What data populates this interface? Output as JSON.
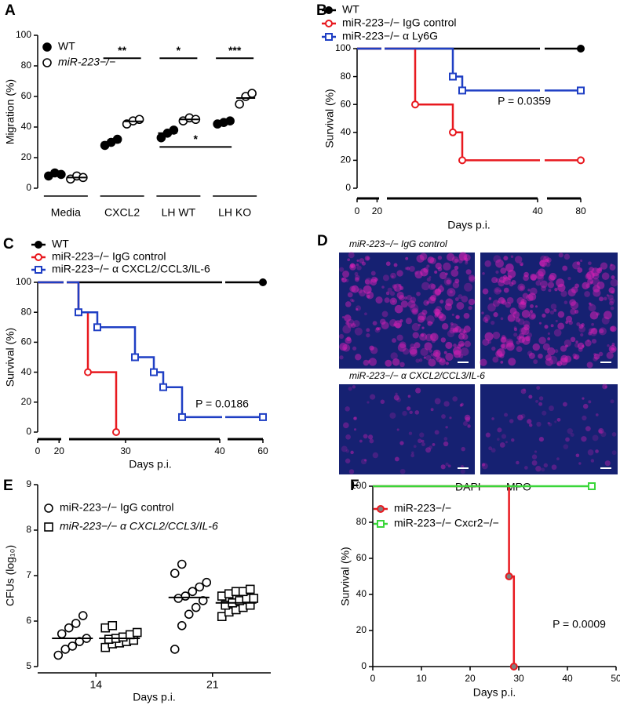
{
  "chart_data": [
    {
      "panel": "A",
      "type": "dotplot",
      "ylabel": "Migration (%)",
      "ylim": [
        0,
        100
      ],
      "yticks": [
        0,
        20,
        40,
        60,
        80,
        100
      ],
      "categories": [
        "Media",
        "CXCL2",
        "LH WT",
        "LH KO"
      ],
      "series": [
        {
          "name": "WT",
          "color": "#000000",
          "marker": "filled-circle",
          "values": [
            [
              8,
              10,
              9
            ],
            [
              28,
              30,
              32
            ],
            [
              33,
              36,
              38
            ],
            [
              42,
              43,
              44
            ]
          ],
          "means": [
            9,
            30,
            36,
            43
          ]
        },
        {
          "name": "miR-223−/−",
          "color": "#000000",
          "marker": "open-circle",
          "values": [
            [
              6,
              8,
              7
            ],
            [
              42,
              44,
              45
            ],
            [
              44,
              46,
              45
            ],
            [
              55,
              60,
              62
            ]
          ],
          "means": [
            7,
            43.7,
            45,
            59
          ]
        }
      ],
      "annotations": [
        "**",
        "*",
        "***",
        "*"
      ]
    },
    {
      "panel": "B",
      "type": "survival",
      "xlabel": "Days p.i.",
      "ylabel": "Survival (%)",
      "xsegments": [
        [
          0,
          22
        ],
        [
          24,
          40
        ],
        [
          77,
          80
        ]
      ],
      "xticks": [
        0,
        20,
        40,
        80
      ],
      "ylim": [
        0,
        100
      ],
      "yticks": [
        0,
        20,
        40,
        60,
        80,
        100
      ],
      "series": [
        {
          "name": "WT",
          "color": "#000000",
          "marker": "filled-circle",
          "x": [
            0,
            80
          ],
          "values": [
            100,
            100
          ]
        },
        {
          "name": "miR-223−/− IgG control",
          "color": "#e8191f",
          "marker": "open-circle",
          "x": [
            0,
            27,
            31,
            32,
            80
          ],
          "values": [
            100,
            60,
            40,
            20,
            20
          ]
        },
        {
          "name": "miR-223−/− α Ly6G",
          "color": "#1f3fc4",
          "marker": "open-square",
          "x": [
            0,
            31,
            32,
            80
          ],
          "values": [
            100,
            80,
            70,
            70
          ]
        }
      ],
      "annotations": [
        "P = 0.0359"
      ]
    },
    {
      "panel": "C",
      "type": "survival",
      "xlabel": "Days p.i.",
      "ylabel": "Survival (%)",
      "xsegments": [
        [
          0,
          22
        ],
        [
          24,
          40
        ],
        [
          58,
          60
        ]
      ],
      "xticks": [
        0,
        20,
        30,
        40,
        60
      ],
      "ylim": [
        0,
        100
      ],
      "yticks": [
        0,
        20,
        40,
        60,
        80,
        100
      ],
      "series": [
        {
          "name": "WT",
          "color": "#000000",
          "marker": "filled-circle",
          "x": [
            0,
            60
          ],
          "values": [
            100,
            100
          ]
        },
        {
          "name": "miR-223−/− IgG control",
          "color": "#e8191f",
          "marker": "open-circle",
          "x": [
            0,
            25,
            26,
            29
          ],
          "values": [
            100,
            80,
            40,
            0
          ]
        },
        {
          "name": "miR-223−/− α CXCL2/CCL3/IL-6",
          "color": "#1f3fc4",
          "marker": "open-square",
          "x": [
            0,
            25,
            27,
            31,
            33,
            34,
            36,
            60
          ],
          "values": [
            100,
            80,
            70,
            50,
            40,
            30,
            10,
            10
          ]
        }
      ],
      "annotations": [
        "P = 0.0186"
      ]
    },
    {
      "panel": "D",
      "type": "image",
      "labels": [
        "miR-223−/− IgG control",
        "miR-223−/− α CXCL2/CCL3/IL-6"
      ],
      "channels": [
        {
          "name": "DAPI",
          "color": "#2233b0"
        },
        {
          "name": "MPO",
          "color": "#e020b8"
        }
      ]
    },
    {
      "panel": "E",
      "type": "dotplot",
      "xlabel": "Days p.i.",
      "ylabel": "CFUs (log₁₀)",
      "ylim": [
        5,
        9
      ],
      "yticks": [
        5,
        6,
        7,
        8,
        9
      ],
      "categories": [
        "14",
        "21"
      ],
      "series": [
        {
          "name": "miR-223−/− IgG control",
          "color": "#000000",
          "marker": "open-circle",
          "values": [
            [
              5.25,
              5.38,
              5.45,
              5.55,
              5.62,
              5.72,
              5.85,
              5.95,
              6.12
            ],
            [
              5.38,
              5.9,
              6.15,
              6.3,
              6.45,
              6.5,
              6.55,
              6.65,
              6.75,
              6.85,
              7.05,
              7.25
            ]
          ],
          "means": [
            5.62,
            6.52
          ]
        },
        {
          "name": "miR-223−/− α CXCL2/CCL3/IL-6",
          "color": "#000000",
          "marker": "open-square",
          "values": [
            [
              5.42,
              5.5,
              5.52,
              5.55,
              5.58,
              5.6,
              5.62,
              5.65,
              5.7,
              5.75,
              5.85,
              5.9
            ],
            [
              6.1,
              6.2,
              6.25,
              6.3,
              6.35,
              6.35,
              6.4,
              6.45,
              6.5,
              6.5,
              6.55,
              6.6,
              6.65,
              6.65,
              6.7
            ]
          ],
          "means": [
            5.62,
            6.4
          ]
        }
      ]
    },
    {
      "panel": "F",
      "type": "survival",
      "xlabel": "Days p.i.",
      "ylabel": "Survival (%)",
      "xlim": [
        0,
        50
      ],
      "xticks": [
        0,
        10,
        20,
        30,
        40,
        50
      ],
      "ylim": [
        0,
        100
      ],
      "yticks": [
        0,
        20,
        40,
        60,
        80,
        100
      ],
      "series": [
        {
          "name": "miR-223−/−",
          "color": "#e8191f",
          "marker": "filled-circle",
          "marker_color": "#808080",
          "x": [
            0,
            28,
            29
          ],
          "values": [
            100,
            50,
            0
          ]
        },
        {
          "name": "miR-223−/− Cxcr2−/−",
          "color": "#3ad63a",
          "marker": "open-square",
          "x": [
            0,
            45
          ],
          "values": [
            100,
            100
          ]
        }
      ],
      "annotations": [
        "P = 0.0009"
      ]
    }
  ]
}
